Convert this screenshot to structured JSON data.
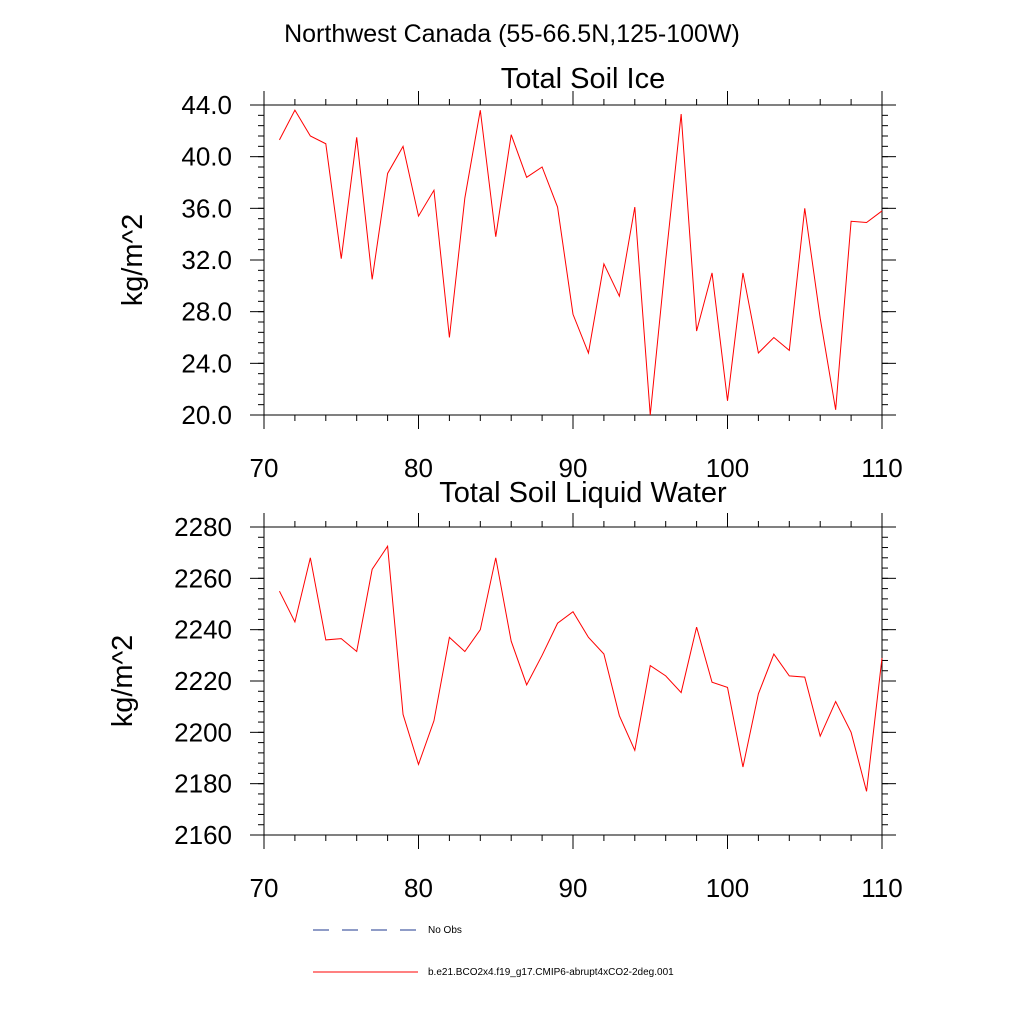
{
  "figure_title": "Northwest Canada (55-66.5N,125-100W)",
  "colors": {
    "series_line": "#ff0000",
    "obs_line": "#1f3a8f",
    "axis": "#000000"
  },
  "legend": {
    "entries": [
      {
        "label": "No Obs",
        "style": "dashed",
        "color": "#1f3a8f"
      },
      {
        "label": "b.e21.BCO2x4.f19_g17.CMIP6-abrupt4xCO2-2deg.001",
        "style": "solid",
        "color": "#ff0000"
      }
    ]
  },
  "chart_data": [
    {
      "type": "line",
      "title": "Total Soil Ice",
      "xlabel": "",
      "ylabel": "kg/m^2",
      "xlim": [
        70,
        110
      ],
      "ylim": [
        20,
        44
      ],
      "xticks": [
        70,
        80,
        90,
        100,
        110
      ],
      "xticklabels": [
        "70",
        "80",
        "90",
        "100",
        "110"
      ],
      "yticks": [
        20,
        24,
        28,
        32,
        36,
        40,
        44
      ],
      "yticklabels": [
        "20.0",
        "24.0",
        "28.0",
        "32.0",
        "36.0",
        "40.0",
        "44.0"
      ],
      "x_minor_step": 2,
      "y_minor_step": 0.8,
      "series": [
        {
          "name": "b.e21.BCO2x4.f19_g17.CMIP6-abrupt4xCO2-2deg.001",
          "color": "#ff0000",
          "x": [
            71,
            72,
            73,
            74,
            75,
            76,
            77,
            78,
            79,
            80,
            81,
            82,
            83,
            84,
            85,
            86,
            87,
            88,
            89,
            90,
            91,
            92,
            93,
            94,
            95,
            96,
            97,
            98,
            99,
            100,
            101,
            102,
            103,
            104,
            105,
            106,
            107,
            108,
            109,
            110
          ],
          "values": [
            41.3,
            43.6,
            41.6,
            41.0,
            32.1,
            41.5,
            30.5,
            38.7,
            40.8,
            35.4,
            37.4,
            26.0,
            36.8,
            43.6,
            33.8,
            41.7,
            38.4,
            39.2,
            36.1,
            27.8,
            24.8,
            31.7,
            29.2,
            36.1,
            20.0,
            32.0,
            43.3,
            26.5,
            31.0,
            21.1,
            31.0,
            24.8,
            26.0,
            25.0,
            36.0,
            27.5,
            20.4,
            35.0,
            34.9,
            35.8
          ]
        }
      ]
    },
    {
      "type": "line",
      "title": "Total Soil Liquid Water",
      "xlabel": "",
      "ylabel": "kg/m^2",
      "xlim": [
        70,
        110
      ],
      "ylim": [
        2160,
        2280
      ],
      "xticks": [
        70,
        80,
        90,
        100,
        110
      ],
      "xticklabels": [
        "70",
        "80",
        "90",
        "100",
        "110"
      ],
      "yticks": [
        2160,
        2180,
        2200,
        2220,
        2240,
        2260,
        2280
      ],
      "yticklabels": [
        "2160",
        "2180",
        "2200",
        "2220",
        "2240",
        "2260",
        "2280"
      ],
      "x_minor_step": 2,
      "y_minor_step": 4,
      "series": [
        {
          "name": "b.e21.BCO2x4.f19_g17.CMIP6-abrupt4xCO2-2deg.001",
          "color": "#ff0000",
          "x": [
            71,
            72,
            73,
            74,
            75,
            76,
            77,
            78,
            79,
            80,
            81,
            82,
            83,
            84,
            85,
            86,
            87,
            88,
            89,
            90,
            91,
            92,
            93,
            94,
            95,
            96,
            97,
            98,
            99,
            100,
            101,
            102,
            103,
            104,
            105,
            106,
            107,
            108,
            109,
            110
          ],
          "values": [
            2255,
            2243,
            2268,
            2236,
            2236.5,
            2231.5,
            2263.5,
            2272.5,
            2207,
            2187.5,
            2204.5,
            2237,
            2231.5,
            2240,
            2268,
            2235.5,
            2218.5,
            2230,
            2242.5,
            2247,
            2237,
            2230.5,
            2206.5,
            2193,
            2226,
            2222,
            2215.5,
            2241,
            2219.5,
            2217.5,
            2186.5,
            2215,
            2230.5,
            2222,
            2221.5,
            2198.5,
            2212,
            2200,
            2177,
            2229
          ]
        }
      ]
    }
  ]
}
